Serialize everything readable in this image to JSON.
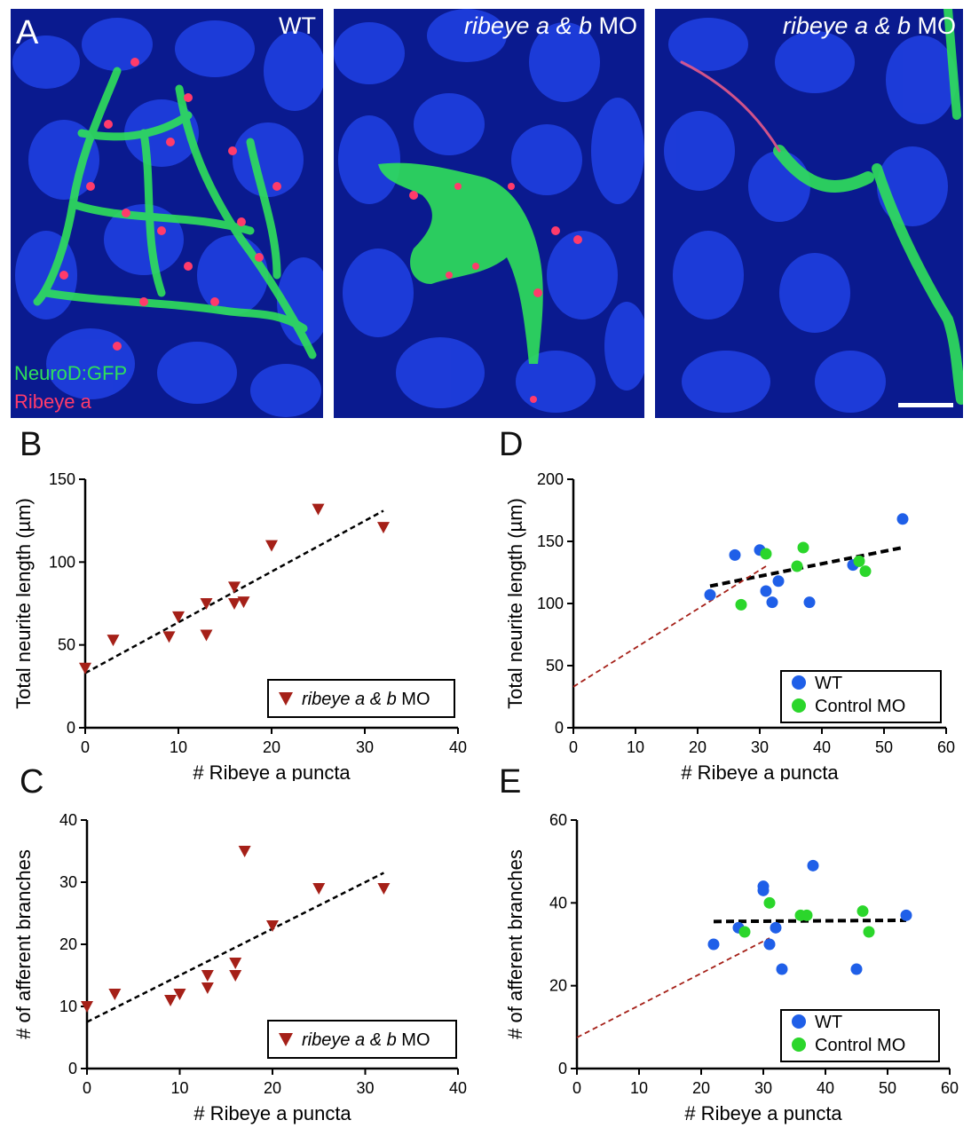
{
  "panel_a": {
    "letter": "A",
    "titles": {
      "wt": "WT",
      "mo1_italic": "ribeye a & b",
      "mo1_suffix": " MO",
      "mo2_italic": "ribeye a & b",
      "mo2_suffix": " MO"
    },
    "channel_green": "NeuroD:GFP",
    "channel_red": "Ribeye a",
    "colors": {
      "background": "#0a1a8f",
      "nuclei": "#1f3fe0",
      "gfp": "#2fe05a",
      "ribeye": "#ff3b6b"
    }
  },
  "chart_data": [
    {
      "panel": "B",
      "type": "scatter",
      "xlabel": "# Ribeye a puncta",
      "ylabel": "Total neurite length (µm)",
      "xlim": [
        0,
        40
      ],
      "ylim": [
        0,
        150
      ],
      "xticks": [
        0,
        10,
        20,
        30,
        40
      ],
      "yticks": [
        0,
        50,
        100,
        150
      ],
      "series": [
        {
          "name": "ribeye a & b MO",
          "marker": "triangle-down",
          "color": "#a52018",
          "points": [
            [
              0,
              36
            ],
            [
              3,
              53
            ],
            [
              9,
              55
            ],
            [
              10,
              67
            ],
            [
              13,
              56
            ],
            [
              13,
              75
            ],
            [
              16,
              75
            ],
            [
              16,
              85
            ],
            [
              17,
              76
            ],
            [
              20,
              110
            ],
            [
              25,
              132
            ],
            [
              32,
              121
            ]
          ]
        }
      ],
      "fits": [
        {
          "x": [
            0,
            32
          ],
          "y": [
            33,
            131
          ],
          "color": "#000000",
          "width": 2.5
        }
      ],
      "legend": "bottom-right"
    },
    {
      "panel": "C",
      "type": "scatter",
      "xlabel": "# Ribeye a puncta",
      "ylabel": "# of afferent branches",
      "xlim": [
        0,
        40
      ],
      "ylim": [
        0,
        40
      ],
      "xticks": [
        0,
        10,
        20,
        30,
        40
      ],
      "yticks": [
        0,
        10,
        20,
        30,
        40
      ],
      "series": [
        {
          "name": "ribeye a & b MO",
          "marker": "triangle-down",
          "color": "#a52018",
          "points": [
            [
              0,
              10
            ],
            [
              3,
              12
            ],
            [
              9,
              11
            ],
            [
              10,
              12
            ],
            [
              13,
              13
            ],
            [
              13,
              15
            ],
            [
              16,
              15
            ],
            [
              16,
              17
            ],
            [
              17,
              35
            ],
            [
              20,
              23
            ],
            [
              25,
              29
            ],
            [
              32,
              29
            ]
          ]
        }
      ],
      "fits": [
        {
          "x": [
            0,
            32
          ],
          "y": [
            7.5,
            31.5
          ],
          "color": "#000000",
          "width": 2.5
        }
      ],
      "legend": "bottom-right"
    },
    {
      "panel": "D",
      "type": "scatter",
      "xlabel": "# Ribeye a puncta",
      "ylabel": "Total neurite length (µm)",
      "xlim": [
        0,
        60
      ],
      "ylim": [
        0,
        200
      ],
      "xticks": [
        0,
        10,
        20,
        30,
        40,
        50,
        60
      ],
      "yticks": [
        0,
        50,
        100,
        150,
        200
      ],
      "series": [
        {
          "name": "WT",
          "marker": "circle",
          "color": "#1f5fe8",
          "points": [
            [
              22,
              107
            ],
            [
              26,
              139
            ],
            [
              30,
              143
            ],
            [
              31,
              110
            ],
            [
              32,
              101
            ],
            [
              33,
              118
            ],
            [
              38,
              101
            ],
            [
              45,
              131
            ],
            [
              53,
              168
            ]
          ]
        },
        {
          "name": "Control MO",
          "marker": "circle",
          "color": "#2bd62b",
          "points": [
            [
              27,
              99
            ],
            [
              31,
              140
            ],
            [
              36,
              130
            ],
            [
              37,
              145
            ],
            [
              46,
              134
            ],
            [
              47,
              126
            ]
          ]
        }
      ],
      "fits": [
        {
          "x": [
            22,
            53
          ],
          "y": [
            114,
            145
          ],
          "color": "#000000",
          "width": 4
        },
        {
          "x": [
            0,
            31
          ],
          "y": [
            33,
            130
          ],
          "color": "#a52018",
          "width": 1.8
        }
      ],
      "legend": "bottom-right"
    },
    {
      "panel": "E",
      "type": "scatter",
      "xlabel": "# Ribeye a puncta",
      "ylabel": "# of afferent branches",
      "xlim": [
        0,
        60
      ],
      "ylim": [
        0,
        60
      ],
      "xticks": [
        0,
        10,
        20,
        30,
        40,
        50,
        60
      ],
      "yticks": [
        0,
        20,
        40,
        60
      ],
      "series": [
        {
          "name": "WT",
          "marker": "circle",
          "color": "#1f5fe8",
          "points": [
            [
              22,
              30
            ],
            [
              26,
              34
            ],
            [
              30,
              44
            ],
            [
              30,
              43
            ],
            [
              31,
              30
            ],
            [
              32,
              34
            ],
            [
              33,
              24
            ],
            [
              38,
              49
            ],
            [
              45,
              24
            ],
            [
              53,
              37
            ]
          ]
        },
        {
          "name": "Control MO",
          "marker": "circle",
          "color": "#2bd62b",
          "points": [
            [
              27,
              33
            ],
            [
              31,
              40
            ],
            [
              36,
              37
            ],
            [
              37,
              37
            ],
            [
              46,
              38
            ],
            [
              47,
              33
            ]
          ]
        }
      ],
      "fits": [
        {
          "x": [
            22,
            53
          ],
          "y": [
            35.5,
            35.8
          ],
          "color": "#000000",
          "width": 4
        },
        {
          "x": [
            0,
            31
          ],
          "y": [
            7.5,
            31.5
          ],
          "color": "#a52018",
          "width": 1.8
        }
      ],
      "legend": "bottom-right"
    }
  ]
}
